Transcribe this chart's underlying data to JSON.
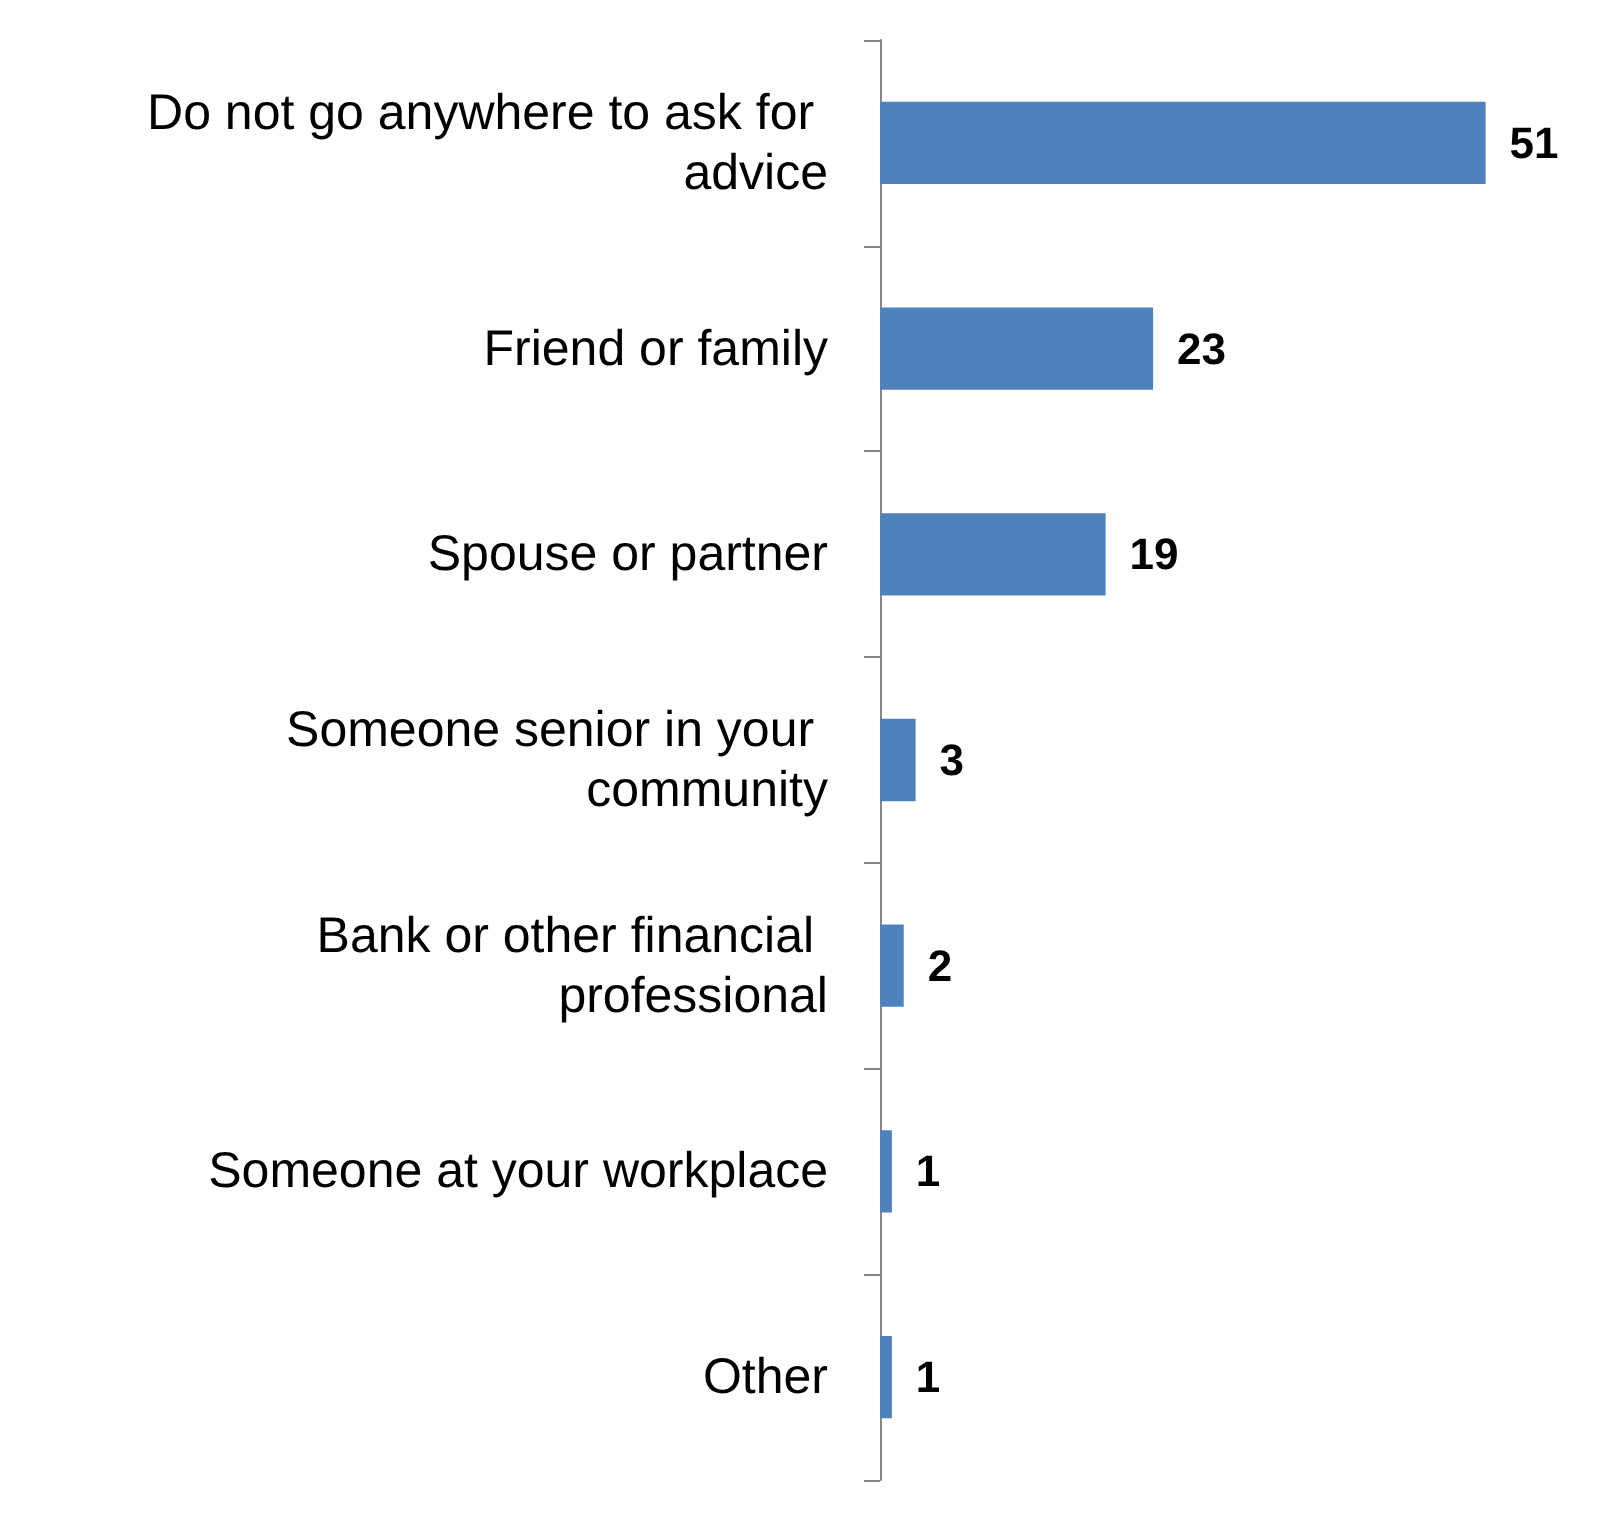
{
  "chart_data": {
    "type": "bar",
    "orientation": "horizontal",
    "categories": [
      "Do not go anywhere to ask for advice",
      "Friend or family",
      "Spouse or partner",
      "Someone senior in your community",
      "Bank or other financial professional",
      "Someone at your workplace",
      "Other"
    ],
    "values": [
      51,
      23,
      19,
      3,
      2,
      1,
      1
    ],
    "color": "#4f81bd",
    "data_labels": true
  }
}
